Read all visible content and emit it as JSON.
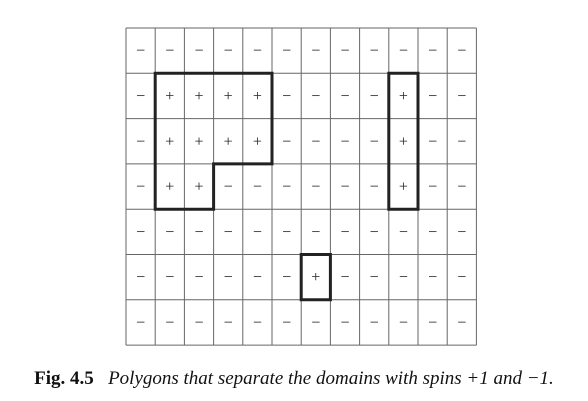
{
  "grid": {
    "rows": [
      [
        "−",
        "−",
        "−",
        "−",
        "−",
        "−",
        "−",
        "−",
        "−",
        "−",
        "−",
        "−"
      ],
      [
        "−",
        "+",
        "+",
        "+",
        "+",
        "−",
        "−",
        "−",
        "−",
        "+",
        "−",
        "−"
      ],
      [
        "−",
        "+",
        "+",
        "+",
        "+",
        "−",
        "−",
        "−",
        "−",
        "+",
        "−",
        "−"
      ],
      [
        "−",
        "+",
        "+",
        "−",
        "−",
        "−",
        "−",
        "−",
        "−",
        "+",
        "−",
        "−"
      ],
      [
        "−",
        "−",
        "−",
        "−",
        "−",
        "−",
        "−",
        "−",
        "−",
        "−",
        "−",
        "−"
      ],
      [
        "−",
        "−",
        "−",
        "−",
        "−",
        "−",
        "+",
        "−",
        "−",
        "−",
        "−",
        "−"
      ],
      [
        "−",
        "−",
        "−",
        "−",
        "−",
        "−",
        "−",
        "−",
        "−",
        "−",
        "−",
        "−"
      ]
    ],
    "colors": {
      "line": "#666666",
      "polygon": "#222222",
      "text": "#222222"
    }
  },
  "caption": {
    "label": "Fig. 4.5",
    "text": "Polygons that separate the domains with spins +1 and −1."
  }
}
